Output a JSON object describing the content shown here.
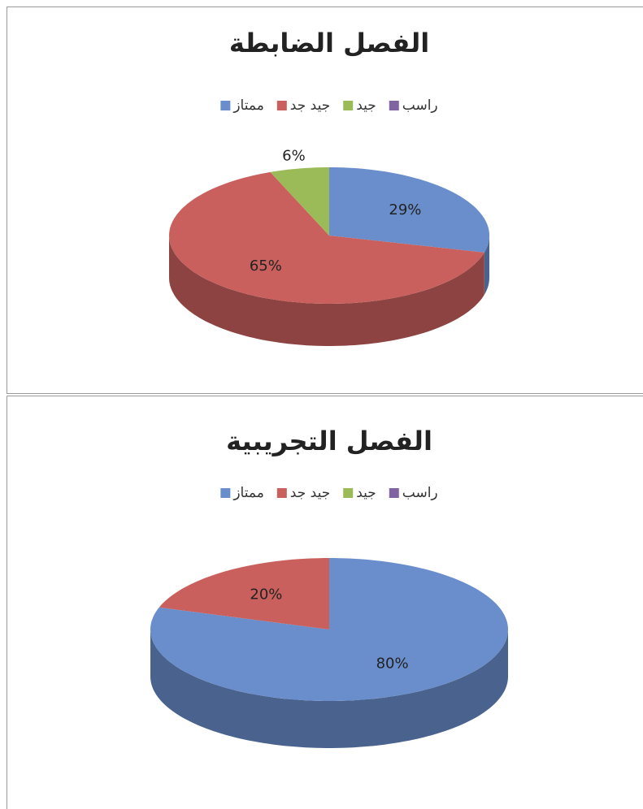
{
  "chart_data": [
    {
      "type": "pie",
      "title": "الفصل الضابطة",
      "categories": [
        "ممتاز",
        "جيد جد",
        "جيد",
        "راسب"
      ],
      "values": [
        29,
        65,
        6,
        0
      ],
      "value_labels": [
        "29%",
        "65%",
        "6%",
        null
      ],
      "colors": [
        "#6a8ecb",
        "#c9605d",
        "#9bbb59",
        "#8064a2"
      ]
    },
    {
      "type": "pie",
      "title": "الفصل التجريبية",
      "categories": [
        "ممتاز",
        "جيد جد",
        "جيد",
        "راسب"
      ],
      "values": [
        80,
        20,
        0,
        0
      ],
      "value_labels": [
        "80%",
        "20%",
        null,
        null
      ],
      "colors": [
        "#6a8ecb",
        "#c9605d",
        "#9bbb59",
        "#8064a2"
      ]
    }
  ]
}
